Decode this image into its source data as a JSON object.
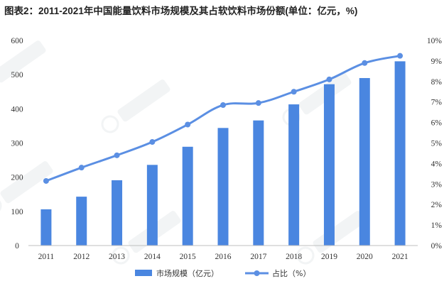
{
  "chart_data": {
    "type": "bar+line",
    "title": "图表2：2011-2021年中国能量饮料市场规模及其占软饮料市场份额(单位：亿元，%)",
    "categories": [
      "2011",
      "2012",
      "2013",
      "2014",
      "2015",
      "2016",
      "2017",
      "2018",
      "2019",
      "2020",
      "2021"
    ],
    "series": [
      {
        "name": "市场规模（亿元）",
        "type": "bar",
        "axis": "left",
        "color": "#4a86e0",
        "values": [
          106,
          143,
          191,
          236,
          289,
          344,
          366,
          413,
          472,
          490,
          539
        ]
      },
      {
        "name": "占比（%）",
        "type": "line",
        "axis": "right",
        "color": "#5b8fe3",
        "values": [
          3.15,
          3.8,
          4.4,
          5.05,
          5.9,
          6.85,
          6.95,
          7.5,
          8.1,
          8.9,
          9.25
        ]
      }
    ],
    "y_left": {
      "min": 0,
      "max": 600,
      "step": 100,
      "ticks": [
        "0",
        "100",
        "200",
        "300",
        "400",
        "500",
        "600"
      ]
    },
    "y_right": {
      "min": 0,
      "max": 10,
      "step": 1,
      "ticks": [
        "0%",
        "1%",
        "2%",
        "3%",
        "4%",
        "5%",
        "6%",
        "7%",
        "8%",
        "9%",
        "10%"
      ]
    },
    "legend_position": "bottom",
    "grid": false
  }
}
